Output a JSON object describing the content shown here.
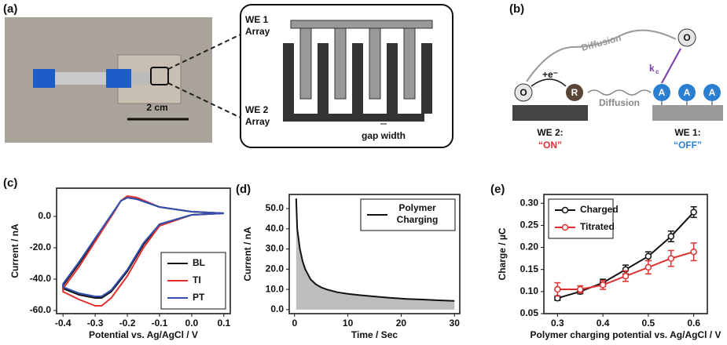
{
  "figure": {
    "a": {
      "label": "(a)",
      "scale": "2 cm",
      "we1": [
        "WE 1",
        "Array"
      ],
      "we2": [
        "WE 2",
        "Array"
      ],
      "gap": "gap width"
    },
    "b": {
      "label": "(b)",
      "diffusion_top": "Diffusion",
      "diffusion_mid": "Diffusion",
      "electron": "+e⁻",
      "ox": "O",
      "red": "R",
      "adsorbed": "A",
      "rate": "k",
      "rate_sub": "c",
      "we2": "WE 2:",
      "we2_state": "“ON”",
      "we1": "WE 1:",
      "we1_state": "“OFF”"
    }
  },
  "chart_data": [
    {
      "type": "line",
      "label": "(c)",
      "xlabel": "Potential vs. Ag/AgCl / V",
      "ylabel": "Current / nA",
      "x": [
        0.1,
        0.0,
        -0.1,
        -0.15,
        -0.2,
        -0.25,
        -0.28,
        -0.3,
        -0.35,
        -0.4,
        -0.4,
        -0.35,
        -0.3,
        -0.25,
        -0.22,
        -0.2,
        -0.17,
        -0.1,
        0.0,
        0.1
      ],
      "series": [
        {
          "name": "BL",
          "color": "#111111",
          "values": [
            2,
            1,
            -5,
            -18,
            -35,
            -48,
            -52,
            -52,
            -50,
            -46,
            -44,
            -30,
            -15,
            0,
            10,
            12,
            11,
            6,
            3,
            2
          ]
        },
        {
          "name": "TI",
          "color": "#e03030",
          "values": [
            2,
            1,
            -6,
            -20,
            -38,
            -52,
            -57,
            -57,
            -53,
            -48,
            -46,
            -32,
            -16,
            0,
            10,
            13,
            12,
            6,
            3,
            2
          ]
        },
        {
          "name": "PT",
          "color": "#3050b0",
          "values": [
            2,
            1,
            -5,
            -17,
            -34,
            -47,
            -51,
            -51,
            -49,
            -45,
            -43,
            -29,
            -14,
            1,
            10,
            12,
            11,
            6,
            3,
            2
          ]
        }
      ],
      "xlim": [
        -0.42,
        0.12
      ],
      "ylim": [
        -62,
        18
      ],
      "xticks": [
        -0.4,
        -0.3,
        -0.2,
        -0.1,
        {
          "value": 0,
          "label": "0.0"
        },
        0.1
      ],
      "yticks": [
        {
          "value": -60,
          "label": "-60.0"
        },
        {
          "value": -40,
          "label": "-40.0"
        },
        {
          "value": -20,
          "label": "-20.0"
        },
        {
          "value": 0,
          "label": "0.0"
        }
      ],
      "legend": "lower right"
    },
    {
      "type": "line",
      "label": "(d)",
      "xlabel": "Time / Sec",
      "ylabel": "Current / nA",
      "fill": "#bdbdbd",
      "x": [
        0.3,
        0.5,
        1,
        1.5,
        2,
        3,
        4,
        5,
        6,
        8,
        10,
        12,
        15,
        18,
        21,
        24,
        27,
        30
      ],
      "series": [
        {
          "name": "Polymer Charging",
          "color": "#111111",
          "values": [
            55,
            40,
            30,
            24,
            20,
            15,
            12.5,
            11,
            10,
            8.6,
            7.8,
            7.2,
            6.5,
            5.8,
            5.3,
            5,
            4.6,
            4.3
          ]
        }
      ],
      "xlim": [
        -1,
        31
      ],
      "ylim": [
        -2,
        57
      ],
      "xticks": [
        0,
        10,
        20,
        30
      ],
      "yticks": [
        {
          "value": 0,
          "label": "0.0"
        },
        {
          "value": 10,
          "label": "10.0"
        },
        {
          "value": 20,
          "label": "20.0"
        },
        {
          "value": 30,
          "label": "30.0"
        },
        {
          "value": 40,
          "label": "40.0"
        },
        {
          "value": 50,
          "label": "50.0"
        }
      ],
      "legend": "upper right"
    },
    {
      "type": "line",
      "label": "(e)",
      "xlabel": "Polymer charging potential vs. Ag/AgCl / V",
      "ylabel": "Charge / µC",
      "marker": "circle",
      "x": [
        0.3,
        0.35,
        0.4,
        0.45,
        0.5,
        0.55,
        0.6
      ],
      "series": [
        {
          "name": "Charged",
          "color": "#111111",
          "values": [
            0.085,
            0.1,
            0.12,
            0.15,
            0.18,
            0.225,
            0.28
          ],
          "errors": [
            0.005,
            0.005,
            0.008,
            0.01,
            0.01,
            0.012,
            0.012
          ]
        },
        {
          "name": "Titrated",
          "color": "#e03030",
          "values": [
            0.105,
            0.105,
            0.115,
            0.135,
            0.155,
            0.175,
            0.19
          ],
          "errors": [
            0.015,
            0.008,
            0.01,
            0.012,
            0.015,
            0.018,
            0.02
          ]
        }
      ],
      "xlim": [
        0.27,
        0.63
      ],
      "ylim": [
        0.05,
        0.32
      ],
      "xticks": [
        0.3,
        0.4,
        0.5,
        0.6
      ],
      "yticks": [
        0.05,
        {
          "value": 0.1,
          "label": "0.10"
        },
        0.15,
        {
          "value": 0.2,
          "label": "0.20"
        },
        0.25,
        {
          "value": 0.3,
          "label": "0.30"
        }
      ],
      "legend": "upper left"
    }
  ]
}
